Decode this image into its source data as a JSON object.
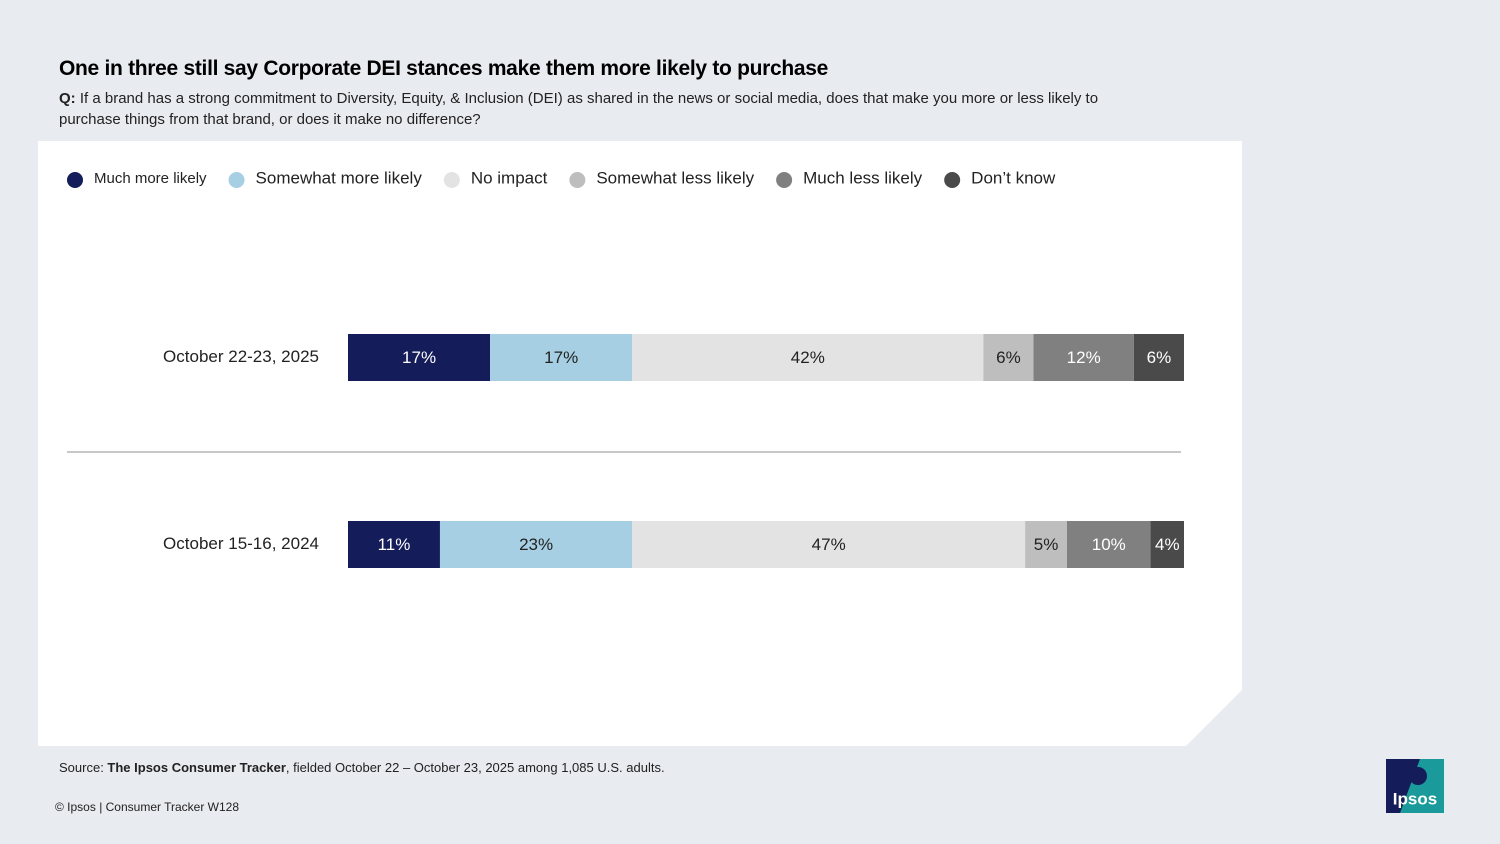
{
  "chart_data": {
    "type": "stacked-bar",
    "title": "One in three still say Corporate DEI stances make them more likely to purchase",
    "question_label": "Q:",
    "subtitle": "If a brand has a strong commitment to Diversity, Equity, & Inclusion (DEI) as shared in the news or social media, does that make you more or less likely to purchase things from that brand, or does it make no difference?",
    "categories": [
      "October 22-23, 2025",
      "October 15-16, 2024"
    ],
    "xlim": [
      0,
      100
    ],
    "series": [
      {
        "name": "Much more likely",
        "color": "#141c5a",
        "label_color": "#ffffff",
        "values": [
          17,
          11
        ],
        "value_labels": [
          "17%",
          "11%"
        ]
      },
      {
        "name": "Somewhat more likely",
        "color": "#a7cfe3",
        "label_color": "#222222",
        "values": [
          17,
          23
        ],
        "value_labels": [
          "17%",
          "23%"
        ]
      },
      {
        "name": "No impact",
        "color": "#e3e3e3",
        "label_color": "#222222",
        "values": [
          42,
          47
        ],
        "value_labels": [
          "42%",
          "47%"
        ]
      },
      {
        "name": "Somewhat less likely",
        "color": "#bebebe",
        "label_color": "#222222",
        "values": [
          6,
          5
        ],
        "value_labels": [
          "6%",
          "5%"
        ]
      },
      {
        "name": "Much less likely",
        "color": "#808080",
        "label_color": "#ffffff",
        "values": [
          12,
          10
        ],
        "value_labels": [
          "12%",
          "10%"
        ]
      },
      {
        "name": "Don’t know",
        "color": "#4a4a4a",
        "label_color": "#ffffff",
        "values": [
          6,
          4
        ],
        "value_labels": [
          "6%",
          "4%"
        ]
      }
    ]
  },
  "source": {
    "prefix": "Source: ",
    "name": "The Ipsos Consumer Tracker",
    "rest": ", fielded October 22 – October 23, 2025 among 1,085 U.S. adults."
  },
  "footer": "© Ipsos | Consumer Tracker W128",
  "logo": "Ipsos"
}
